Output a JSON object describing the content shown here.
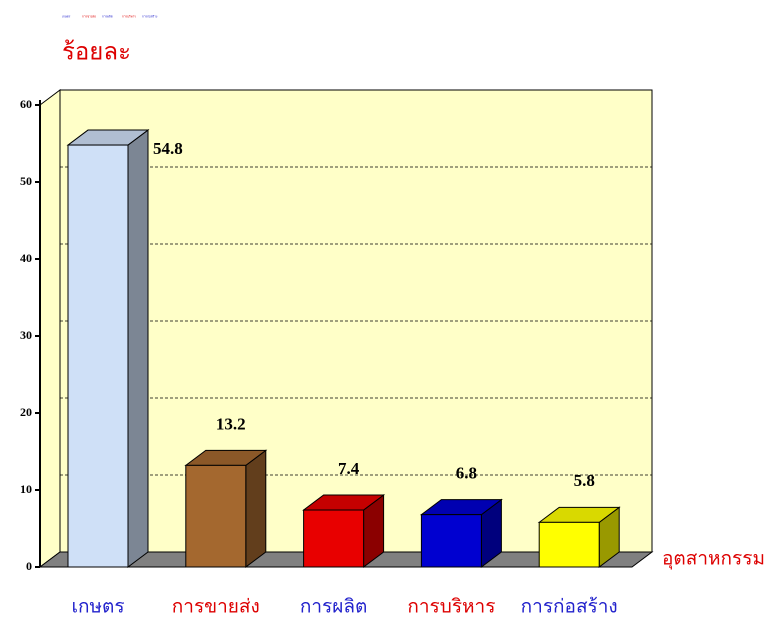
{
  "chart_data": {
    "type": "bar3d",
    "ylabel": "ร้อยละ",
    "xlabel": "อุตสาหกรรม",
    "categories": [
      "เกษตร",
      "การขายส่ง",
      "การผลิต",
      "การบริหาร",
      "การก่อสร้าง"
    ],
    "values": [
      54.8,
      13.2,
      7.4,
      6.8,
      5.8
    ],
    "colors": [
      "#cfe0f7",
      "#a4682f",
      "#e80000",
      "#0000d0",
      "#ffff00"
    ],
    "label_colors": [
      "#2222cc",
      "#dd0000",
      "#2222cc",
      "#dd0000",
      "#2222cc"
    ],
    "ylim": [
      0,
      60
    ],
    "yticks": [
      0,
      10,
      20,
      30,
      40,
      50,
      60
    ],
    "grid": true
  }
}
